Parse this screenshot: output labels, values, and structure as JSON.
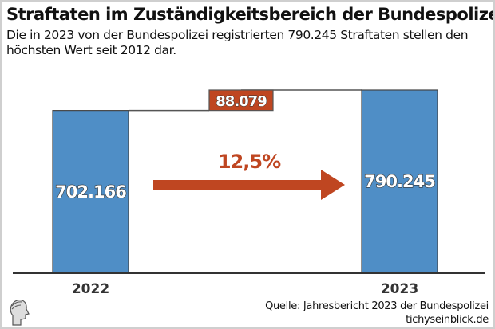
{
  "title": "Straftaten im Zuständigkeitsbereich der Bundespolizei",
  "subtitle": "Die in 2023 von der Bundespolizei registrierten 790.245 Straftaten stellen den höchsten Wert seit 2012 dar.",
  "source": "Quelle: Jahresbericht 2023 der Bundespolizei",
  "website": "tichyseinblick.de",
  "chart_data": {
    "type": "bar",
    "categories": [
      "2022",
      "2023"
    ],
    "values": [
      702166,
      790245
    ],
    "value_labels": [
      "702.166",
      "790.245"
    ],
    "difference_label": "88.079",
    "change_label": "12,5%",
    "ylim": [
      0,
      790245
    ],
    "grid": false,
    "colors": {
      "bar": "#4f8ec6",
      "accent": "#bf4621"
    }
  }
}
